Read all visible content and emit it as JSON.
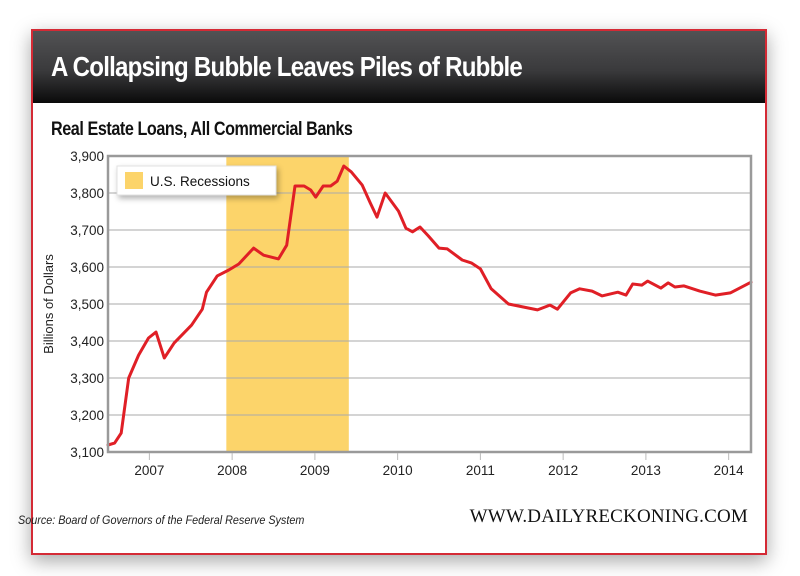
{
  "header": {
    "title": "A Collapsing Bubble Leaves Piles of Rubble"
  },
  "footer": {
    "source": "Source: Board of Governors of the Federal Reserve System",
    "site": "WWW.DAILYRECKONING.COM"
  },
  "colors": {
    "frame": "#d42a35",
    "line": "#e01f26",
    "recession": "#fcd46a",
    "grid": "#aaaaaa",
    "axis": "#9a9a9a"
  },
  "chart_data": {
    "type": "line",
    "title": "Real Estate Loans, All Commercial Banks",
    "xlabel": "",
    "ylabel": "Billions of Dollars",
    "xlim": [
      2006.5,
      2014.27
    ],
    "ylim": [
      3100,
      3900
    ],
    "grid": true,
    "yticks": [
      3100,
      3200,
      3300,
      3400,
      3500,
      3600,
      3700,
      3800,
      3900
    ],
    "ytick_labels": [
      "3,100",
      "3,200",
      "3,300",
      "3,400",
      "3,500",
      "3,600",
      "3,700",
      "3,800",
      "3,900"
    ],
    "xticks": [
      2007,
      2008,
      2009,
      2010,
      2011,
      2012,
      2013,
      2014
    ],
    "xtick_labels": [
      "2007",
      "2008",
      "2009",
      "2010",
      "2011",
      "2012",
      "2013",
      "2014"
    ],
    "legend": {
      "position": "top-left",
      "entries": [
        "U.S. Recessions"
      ]
    },
    "shaded_regions": [
      {
        "name": "U.S. Recessions",
        "start": 2007.93,
        "end": 2009.41
      }
    ],
    "series": [
      {
        "name": "Real Estate Loans",
        "x": [
          2006.5,
          2006.58,
          2006.66,
          2006.75,
          2006.87,
          2006.99,
          2007.08,
          2007.18,
          2007.3,
          2007.51,
          2007.64,
          2007.69,
          2007.82,
          2007.96,
          2008.08,
          2008.26,
          2008.38,
          2008.56,
          2008.66,
          2008.76,
          2008.87,
          2008.95,
          2009.01,
          2009.1,
          2009.19,
          2009.27,
          2009.35,
          2009.44,
          2009.57,
          2009.67,
          2009.75,
          2009.85,
          2010.01,
          2010.1,
          2010.18,
          2010.27,
          2010.37,
          2010.5,
          2010.6,
          2010.78,
          2010.89,
          2011.0,
          2011.13,
          2011.34,
          2011.69,
          2011.84,
          2011.93,
          2012.09,
          2012.2,
          2012.35,
          2012.47,
          2012.66,
          2012.76,
          2012.84,
          2012.95,
          2013.02,
          2013.18,
          2013.27,
          2013.35,
          2013.46,
          2013.65,
          2013.84,
          2014.02,
          2014.27
        ],
        "values": [
          3119,
          3124,
          3151,
          3300,
          3362,
          3408,
          3424,
          3354,
          3395,
          3443,
          3486,
          3532,
          3576,
          3592,
          3608,
          3651,
          3632,
          3622,
          3659,
          3819,
          3819,
          3808,
          3789,
          3819,
          3819,
          3832,
          3873,
          3857,
          3822,
          3773,
          3735,
          3800,
          3751,
          3705,
          3695,
          3708,
          3684,
          3651,
          3649,
          3619,
          3611,
          3595,
          3541,
          3500,
          3484,
          3497,
          3486,
          3530,
          3541,
          3535,
          3522,
          3532,
          3524,
          3554,
          3551,
          3562,
          3543,
          3557,
          3546,
          3549,
          3535,
          3524,
          3530,
          3559
        ]
      }
    ]
  }
}
